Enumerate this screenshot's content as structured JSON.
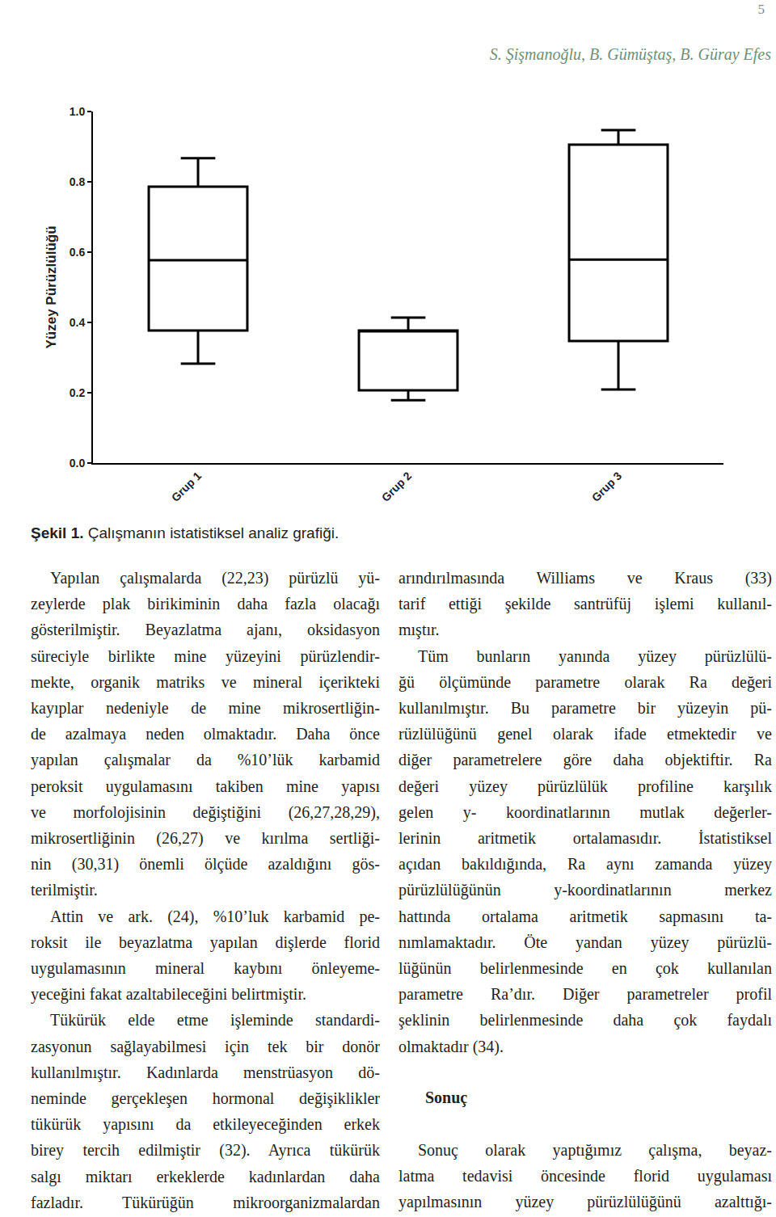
{
  "header": {
    "page_number": "5",
    "authors": "S. Şişmanoğlu, B. Gümüştaş, B. Güray Efes"
  },
  "chart_data": {
    "type": "box",
    "y_label": "Yüzey Pürüzlülüğü",
    "categories": [
      "Grup 1",
      "Grup 2",
      "Grup 3"
    ],
    "lower_whisker": [
      0.283,
      0.179,
      0.209
    ],
    "q1": [
      0.377,
      0.207,
      0.347
    ],
    "median": [
      0.577,
      0.375,
      0.579
    ],
    "q3": [
      0.786,
      0.377,
      0.906
    ],
    "upper_whisker": [
      0.867,
      0.414,
      0.947
    ],
    "ylim": [
      0,
      1
    ],
    "yticks": [
      {
        "value": 0,
        "label": "0.0"
      },
      0.2,
      0.4,
      0.6,
      0.8,
      {
        "value": 1,
        "label": "1.0"
      }
    ],
    "color": "#000000",
    "grid": false
  },
  "caption": {
    "label": "Şekil 1.",
    "text": "Çalışmanın istatistiksel analiz grafiği."
  },
  "columns": [
    [
      {
        "paragraph": [
          "Yapılan çalışmalarda (22,23) pürüzlü yü-",
          "zeylerde plak birikiminin daha fazla olacağı",
          "gösterilmiştir. Beyazlatma ajanı, oksidasyon",
          "süreciyle birlikte mine yüzeyini pürüzlendir-",
          "mekte, organik matriks ve mineral içerikteki",
          "kayıplar nedeniyle de mine mikrosertliğin-",
          "de azalmaya neden olmaktadır. Daha önce",
          "yapılan çalışmalar da %10’lük karbamid",
          "peroksit uygulamasını takiben mine yapısı",
          "ve morfolojisinin değiştiğini (26,27,28,29),",
          "mikrosertliğinin (26,27) ve kırılma sertliği-",
          "nin (30,31)  önemli ölçüde azaldığını gös-",
          "terilmiştir."
        ]
      },
      {
        "paragraph": [
          "Attin ve ark. (24), %10’luk karbamid pe-",
          "roksit ile beyazlatma yapılan dişlerde florid",
          "uygulamasının mineral kaybını önleyeme-",
          "yeceğini fakat azaltabileceğini belirtmiştir."
        ]
      },
      {
        "paragraph": [
          "Tükürük elde etme işleminde standardi-",
          "zasyonun sağlayabilmesi için tek bir donör",
          "kullanılmıştır. Kadınlarda menstrüasyon dö-",
          "neminde gerçekleşen hormonal değişiklikler",
          "tükürük yapısını da etkileyeceğinden erkek",
          "birey tercih edilmiştir (32). Ayrıca tükürük",
          "salgı miktarı erkeklerde kadınlardan daha",
          "fazladır. Tükürüğün mikroorganizmalardan"
        ]
      }
    ],
    [
      {
        "paragraph": [
          "arındırılmasında  Williams ve Kraus (33)",
          "tarif ettiği şekilde santrüfüj işlemi kullanıl-",
          "mıştır."
        ]
      },
      {
        "paragraph": [
          "Tüm bunların yanında yüzey pürüzlülü-",
          "ğü ölçümünde parametre olarak Ra değeri",
          "kullanılmıştır. Bu parametre bir yüzeyin pü-",
          "rüzlülüğünü genel olarak ifade etmektedir ve",
          "diğer parametrelere göre daha objektiftir. Ra",
          "değeri yüzey pürüzlülük profiline karşılık",
          "gelen y- koordinatlarının mutlak değerler-",
          "lerinin aritmetik ortalamasıdır. İstatistiksel",
          "açıdan bakıldığında, Ra aynı zamanda yüzey",
          "pürüzlülüğünün y-koordinatlarının merkez",
          "hattında ortalama aritmetik sapmasını ta-",
          "nımlamaktadır. Öte yandan yüzey pürüzlü-",
          "lüğünün belirlenmesinde en çok kullanılan",
          "parametre Ra’dır. Diğer parametreler profil",
          "şeklinin belirlenmesinde daha çok faydalı",
          "olmaktadır (34)."
        ]
      },
      {
        "heading": "Sonuç"
      },
      {
        "paragraph": [
          "Sonuç olarak yaptığımız çalışma, beyaz-",
          "latma tedavisi öncesinde florid uygulaması",
          "yapılmasının yüzey pürüzlülüğünü azalttığı-"
        ]
      }
    ]
  ]
}
